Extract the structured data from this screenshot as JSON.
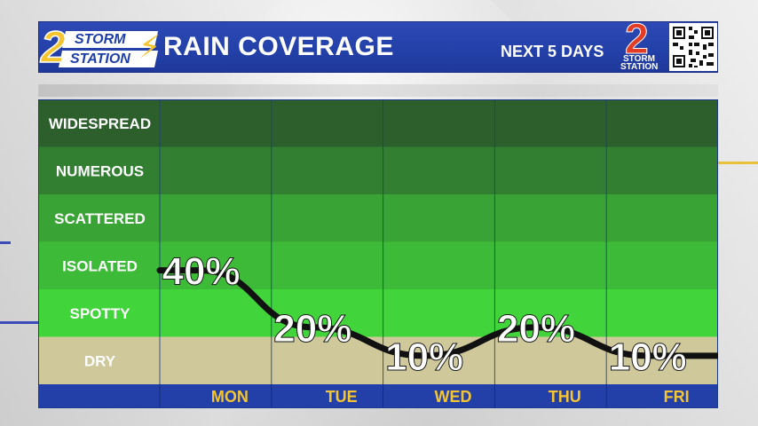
{
  "header": {
    "logo_line1": "STORM",
    "logo_line2": "STATION",
    "title": "RAIN COVERAGE",
    "subtitle": "NEXT 5 DAYS",
    "badge_line1": "STORM",
    "badge_line2": "STATION"
  },
  "chart_data": {
    "type": "line",
    "title": "RAIN COVERAGE",
    "subtitle": "NEXT 5 DAYS",
    "categories": [
      "MON",
      "TUE",
      "WED",
      "THU",
      "FRI"
    ],
    "values": [
      40,
      20,
      10,
      20,
      10
    ],
    "value_labels": [
      "40%",
      "20%",
      "10%",
      "20%",
      "10%"
    ],
    "y_categories": [
      "WIDESPREAD",
      "NUMEROUS",
      "SCATTERED",
      "ISOLATED",
      "SPOTTY",
      "DRY"
    ],
    "bands": [
      {
        "label": "DRY",
        "color": "#cfc89a"
      },
      {
        "label": "SPOTTY",
        "color": "#41d43b"
      },
      {
        "label": "ISOLATED",
        "color": "#3dbb38"
      },
      {
        "label": "SCATTERED",
        "color": "#39a335"
      },
      {
        "label": "NUMEROUS",
        "color": "#327f31"
      },
      {
        "label": "WIDESPREAD",
        "color": "#2d5f2d"
      }
    ],
    "ylim": [
      0,
      100
    ],
    "line_color": "#111111",
    "day_label_color": "#f5c531",
    "axis_bar_color": "#2340a8"
  }
}
